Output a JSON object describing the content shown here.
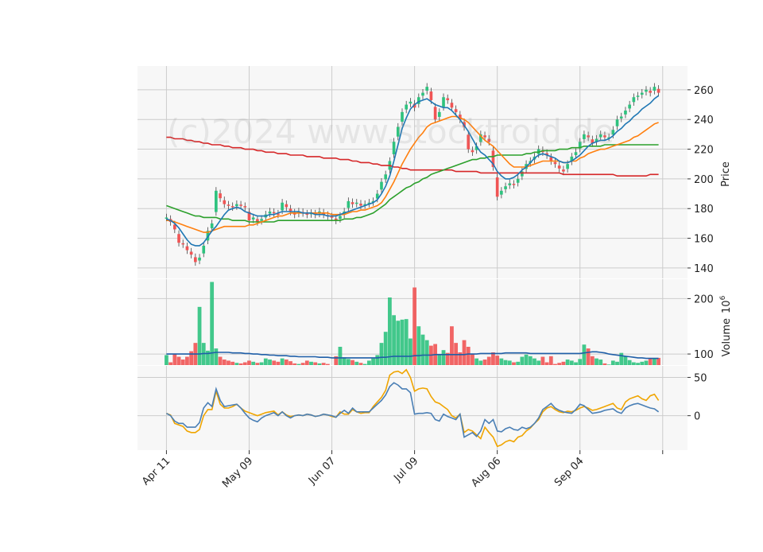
{
  "watermark": "(c)2024 www.stocktroid.de",
  "colors": {
    "up": "#2ec27e",
    "down": "#f05454",
    "wick": "#444444",
    "panel_bg": "#f7f7f7",
    "grid": "#cccccc",
    "ma_short": "#1f77b4",
    "ma_mid": "#ff7f0e",
    "ma_long": "#2ca02c",
    "ma_200": "#d62728",
    "vol_avg": "#1f5fa8",
    "osc_a": "#4a7fb5",
    "osc_b": "#f0a500"
  },
  "chart_data": [
    {
      "type": "candlestick",
      "name": "price",
      "ylabel": "Price",
      "ylim": [
        133,
        276
      ],
      "yticks": [
        140,
        160,
        180,
        200,
        220,
        240,
        260
      ],
      "x_labels": [
        {
          "index": 0,
          "label": "Apr 11"
        },
        {
          "index": 20,
          "label": "May 09"
        },
        {
          "index": 40,
          "label": "Jun 07"
        },
        {
          "index": 60,
          "label": "Jul 09"
        },
        {
          "index": 80,
          "label": "Aug 06"
        },
        {
          "index": 100,
          "label": "Sep 04"
        },
        {
          "index": 120,
          "label": ""
        }
      ],
      "x_range": [
        -7,
        126
      ],
      "close": [
        174,
        171,
        166,
        157,
        156,
        152,
        149,
        144,
        147,
        155,
        165,
        170,
        192,
        187,
        183,
        182,
        181,
        183,
        182,
        181,
        172,
        174,
        171,
        173,
        176,
        178,
        177,
        176,
        184,
        181,
        178,
        176,
        178,
        177,
        176,
        177,
        176,
        178,
        176,
        175,
        174,
        172,
        175,
        178,
        185,
        183,
        184,
        182,
        183,
        184,
        185,
        190,
        198,
        203,
        212,
        225,
        235,
        245,
        250,
        252,
        248,
        255,
        258,
        262,
        253,
        240,
        245,
        255,
        253,
        248,
        245,
        240,
        235,
        220,
        218,
        222,
        230,
        228,
        225,
        208,
        188,
        192,
        195,
        197,
        196,
        200,
        205,
        210,
        212,
        215,
        220,
        218,
        216,
        212,
        210,
        207,
        205,
        210,
        215,
        218,
        225,
        230,
        228,
        224,
        227,
        230,
        228,
        228,
        233,
        240,
        242,
        246,
        250,
        255,
        256,
        258,
        260,
        258,
        262,
        258
      ],
      "volume": [
        98,
        85,
        100,
        95,
        90,
        95,
        105,
        120,
        185,
        120,
        106,
        230,
        110,
        95,
        90,
        88,
        86,
        84,
        83,
        85,
        88,
        86,
        84,
        85,
        92,
        90,
        88,
        86,
        92,
        90,
        87,
        83,
        82,
        84,
        88,
        86,
        85,
        83,
        84,
        82,
        80,
        96,
        113,
        94,
        91,
        89,
        86,
        84,
        82,
        88,
        92,
        98,
        120,
        140,
        202,
        170,
        160,
        162,
        163,
        128,
        220,
        150,
        135,
        125,
        115,
        118,
        100,
        107,
        102,
        150,
        120,
        103,
        125,
        113,
        100,
        92,
        88,
        90,
        95,
        103,
        97,
        92,
        89,
        88,
        85,
        86,
        95,
        99,
        96,
        92,
        88,
        95,
        85,
        96,
        82,
        84,
        86,
        90,
        88,
        85,
        91,
        117,
        110,
        96,
        92,
        90,
        83,
        81,
        88,
        86,
        102,
        96,
        89,
        85,
        84,
        86,
        88,
        92,
        92,
        93
      ],
      "avg_volume": [
        100,
        100,
        100,
        100,
        100,
        100,
        100,
        100,
        100,
        101,
        101,
        102,
        103,
        103,
        103,
        103,
        102,
        102,
        102,
        101,
        101,
        100,
        100,
        99,
        99,
        98,
        98,
        97,
        97,
        97,
        96,
        96,
        95,
        95,
        95,
        95,
        95,
        94,
        94,
        94,
        93,
        93,
        93,
        93,
        93,
        93,
        93,
        93,
        93,
        93,
        93,
        93,
        94,
        94,
        95,
        96,
        96,
        96,
        96,
        96,
        97,
        97,
        98,
        98,
        98,
        99,
        99,
        99,
        99,
        99,
        99,
        99,
        99,
        100,
        100,
        100,
        101,
        101,
        101,
        101,
        101,
        101,
        102,
        102,
        102,
        102,
        102,
        102,
        101,
        101,
        101,
        101,
        101,
        101,
        101,
        101,
        101,
        101,
        101,
        101,
        101,
        102,
        103,
        104,
        104,
        103,
        102,
        100,
        99,
        98,
        97,
        96,
        95,
        94,
        93,
        93,
        92,
        92,
        92,
        92
      ],
      "ma_short": [
        173,
        172,
        170,
        167,
        163,
        159,
        156,
        155,
        155,
        157,
        161,
        165,
        168,
        172,
        176,
        179,
        180,
        181,
        180,
        178,
        177,
        176,
        175,
        175,
        175,
        176,
        176,
        177,
        178,
        178,
        178,
        178,
        178,
        177,
        177,
        177,
        176,
        176,
        176,
        175,
        175,
        175,
        176,
        177,
        178,
        179,
        180,
        181,
        182,
        183,
        184,
        186,
        190,
        195,
        202,
        212,
        223,
        234,
        241,
        247,
        250,
        252,
        253,
        254,
        252,
        250,
        249,
        248,
        248,
        246,
        243,
        240,
        236,
        232,
        227,
        222,
        218,
        216,
        213,
        210,
        205,
        202,
        200,
        200,
        201,
        203,
        206,
        208,
        211,
        214,
        216,
        217,
        216,
        215,
        214,
        212,
        211,
        211,
        212,
        214,
        216,
        219,
        222,
        224,
        225,
        226,
        226,
        227,
        229,
        232,
        234,
        237,
        239,
        242,
        244,
        247,
        249,
        251,
        254,
        256
      ],
      "ma_mid": [
        172,
        172,
        171,
        170,
        169,
        168,
        167,
        166,
        165,
        164,
        164,
        165,
        166,
        167,
        168,
        168,
        168,
        168,
        168,
        168,
        169,
        169,
        170,
        171,
        172,
        173,
        174,
        175,
        175,
        176,
        177,
        177,
        177,
        177,
        177,
        177,
        177,
        177,
        177,
        177,
        176,
        176,
        176,
        176,
        177,
        178,
        178,
        179,
        179,
        180,
        181,
        182,
        184,
        188,
        193,
        198,
        204,
        210,
        215,
        220,
        224,
        228,
        231,
        235,
        237,
        238,
        239,
        240,
        241,
        242,
        242,
        241,
        240,
        238,
        235,
        232,
        229,
        226,
        224,
        222,
        219,
        216,
        213,
        210,
        208,
        208,
        208,
        208,
        209,
        210,
        211,
        212,
        212,
        212,
        212,
        212,
        211,
        211,
        212,
        212,
        214,
        215,
        217,
        218,
        219,
        220,
        220,
        221,
        222,
        223,
        224,
        225,
        226,
        228,
        229,
        231,
        233,
        235,
        237,
        238
      ],
      "ma_long": [
        182,
        181,
        180,
        179,
        178,
        177,
        176,
        175,
        175,
        174,
        174,
        174,
        174,
        173,
        173,
        173,
        172,
        172,
        172,
        172,
        171,
        171,
        171,
        171,
        171,
        171,
        171,
        172,
        172,
        172,
        172,
        172,
        172,
        172,
        172,
        172,
        172,
        172,
        172,
        172,
        172,
        172,
        172,
        173,
        173,
        173,
        174,
        174,
        175,
        176,
        177,
        179,
        181,
        183,
        186,
        188,
        190,
        192,
        194,
        195,
        197,
        198,
        200,
        201,
        203,
        204,
        205,
        206,
        207,
        208,
        209,
        210,
        211,
        212,
        213,
        213,
        214,
        214,
        215,
        215,
        216,
        216,
        216,
        216,
        216,
        216,
        216,
        217,
        217,
        218,
        218,
        219,
        219,
        219,
        219,
        220,
        220,
        220,
        221,
        221,
        221,
        222,
        222,
        222,
        222,
        222,
        223,
        223,
        223,
        223,
        223,
        223,
        223,
        223,
        223,
        223,
        223,
        223,
        223,
        223
      ],
      "ma_200": [
        228,
        228,
        227,
        227,
        227,
        226,
        226,
        225,
        225,
        224,
        224,
        223,
        223,
        223,
        222,
        222,
        221,
        221,
        221,
        220,
        220,
        220,
        219,
        219,
        218,
        218,
        218,
        217,
        217,
        217,
        216,
        216,
        216,
        216,
        215,
        215,
        215,
        215,
        214,
        214,
        214,
        214,
        213,
        213,
        213,
        212,
        212,
        211,
        211,
        211,
        210,
        210,
        209,
        209,
        209,
        208,
        208,
        207,
        207,
        206,
        206,
        206,
        206,
        206,
        206,
        206,
        206,
        206,
        206,
        206,
        205,
        205,
        205,
        205,
        205,
        205,
        204,
        204,
        204,
        204,
        204,
        204,
        204,
        204,
        204,
        204,
        204,
        204,
        204,
        204,
        204,
        204,
        204,
        204,
        204,
        204,
        203,
        203,
        203,
        203,
        203,
        203,
        203,
        203,
        203,
        203,
        203,
        203,
        203,
        202,
        202,
        202,
        202,
        202,
        202,
        202,
        202,
        203,
        203,
        203
      ]
    },
    {
      "type": "bar",
      "name": "volume",
      "ylabel": "Volume  10^6",
      "ylabel_text": "Volume",
      "ylabel_exp": "10",
      "ylabel_sup": "6",
      "ylim": [
        80,
        235
      ],
      "yticks": [
        100,
        200
      ]
    },
    {
      "type": "line",
      "name": "oscillator",
      "ylim": [
        -45,
        65
      ],
      "yticks": [
        0,
        50
      ],
      "series_a": [
        3,
        0,
        -7,
        -10,
        -10,
        -15,
        -15,
        -15,
        -9,
        10,
        17,
        12,
        35,
        20,
        12,
        13,
        14,
        15,
        10,
        3,
        -3,
        -6,
        -8,
        -3,
        0,
        2,
        4,
        0,
        5,
        0,
        -3,
        0,
        1,
        0,
        2,
        1,
        -1,
        0,
        2,
        1,
        0,
        -2,
        3,
        7,
        3,
        10,
        5,
        5,
        5,
        5,
        10,
        15,
        20,
        27,
        38,
        43,
        40,
        35,
        35,
        30,
        2,
        3,
        3,
        4,
        3,
        -5,
        -7,
        2,
        -1,
        -3,
        -5,
        2,
        -28,
        -25,
        -22,
        -27,
        -20,
        -5,
        -10,
        -5,
        -20,
        -21,
        -17,
        -15,
        -18,
        -19,
        -15,
        -17,
        -15,
        -10,
        -3,
        8,
        12,
        16,
        10,
        7,
        5,
        4,
        3,
        8,
        15,
        13,
        8,
        3,
        4,
        5,
        7,
        8,
        9,
        5,
        3,
        10,
        13,
        15,
        16,
        14,
        12,
        10,
        9,
        5
      ],
      "series_b": [
        3,
        1,
        -10,
        -12,
        -14,
        -20,
        -22,
        -22,
        -18,
        0,
        8,
        8,
        32,
        15,
        10,
        10,
        12,
        15,
        10,
        6,
        4,
        2,
        0,
        2,
        4,
        5,
        6,
        1,
        5,
        1,
        -1,
        0,
        1,
        0,
        2,
        1,
        -1,
        0,
        2,
        1,
        -1,
        -2,
        5,
        2,
        2,
        8,
        5,
        3,
        4,
        4,
        12,
        18,
        24,
        33,
        53,
        57,
        58,
        55,
        60,
        50,
        32,
        35,
        36,
        35,
        25,
        18,
        16,
        12,
        8,
        0,
        -3,
        2,
        -22,
        -18,
        -20,
        -25,
        -30,
        -15,
        -22,
        -28,
        -40,
        -38,
        -34,
        -32,
        -34,
        -28,
        -26,
        -20,
        -16,
        -10,
        -5,
        5,
        10,
        12,
        8,
        5,
        4,
        6,
        5,
        7,
        10,
        12,
        10,
        7,
        8,
        10,
        12,
        14,
        16,
        10,
        8,
        18,
        22,
        24,
        26,
        22,
        20,
        26,
        28,
        20
      ]
    }
  ]
}
